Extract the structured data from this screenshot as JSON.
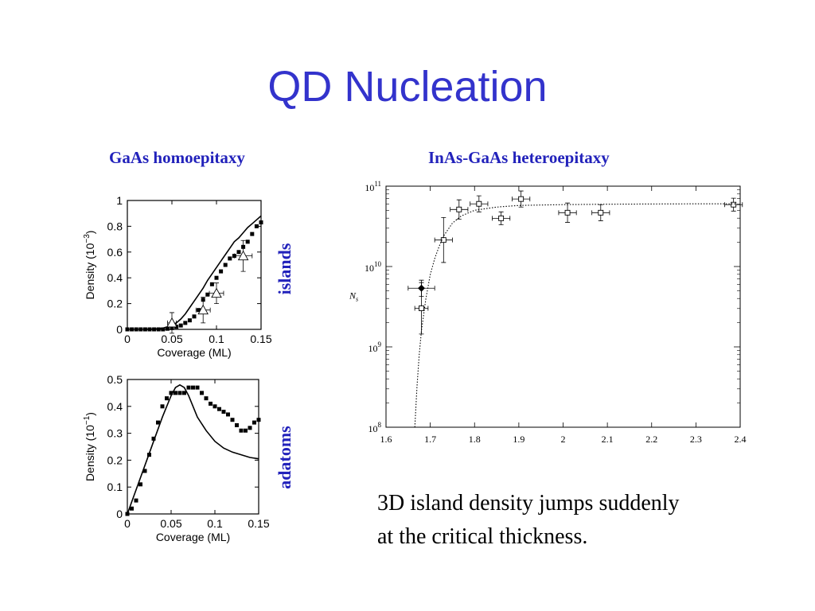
{
  "slide": {
    "title": "QD Nucleation",
    "left_heading": "GaAs homoepitaxy",
    "right_heading": "InAs-GaAs heteroepitaxy",
    "label_islands": "islands",
    "label_adatoms": "adatoms",
    "caption_line1": "3D island density jumps suddenly",
    "caption_line2": "at the critical thickness."
  },
  "colors": {
    "title": "#3333cc",
    "heading": "#2222bb",
    "ink": "#000000"
  },
  "chart_data": [
    {
      "type": "scatter",
      "panel": "islands",
      "xlabel": "Coverage (ML)",
      "ylabel": "Density (10",
      "ylabel_exp": "−3",
      "ylabel_close": ")",
      "xlim": [
        0,
        0.15
      ],
      "ylim": [
        0,
        1
      ],
      "xticks": [
        0,
        0.05,
        0.1,
        0.15
      ],
      "xtick_labels": [
        "0",
        "0.05",
        "0.1",
        "0.15"
      ],
      "yticks": [
        0,
        0.2,
        0.4,
        0.6,
        0.8,
        1
      ],
      "ytick_labels": [
        "0",
        "0.2",
        "0.4",
        "0.6",
        "0.8",
        "1"
      ],
      "series": [
        {
          "style": "squares",
          "x": [
            0.0,
            0.005,
            0.01,
            0.015,
            0.02,
            0.025,
            0.03,
            0.035,
            0.04,
            0.045,
            0.05,
            0.055,
            0.06,
            0.065,
            0.07,
            0.075,
            0.08,
            0.085,
            0.09,
            0.095,
            0.1,
            0.105,
            0.11,
            0.115,
            0.12,
            0.125,
            0.13,
            0.135,
            0.14,
            0.145,
            0.15
          ],
          "y": [
            0,
            0,
            0,
            0,
            0,
            0,
            0,
            0,
            0,
            0.005,
            0.01,
            0.02,
            0.03,
            0.05,
            0.07,
            0.1,
            0.15,
            0.23,
            0.27,
            0.35,
            0.4,
            0.45,
            0.5,
            0.55,
            0.57,
            0.6,
            0.64,
            0.68,
            0.74,
            0.8,
            0.83
          ]
        },
        {
          "style": "line",
          "x": [
            0.02,
            0.03,
            0.04,
            0.05,
            0.055,
            0.06,
            0.065,
            0.07,
            0.075,
            0.08,
            0.085,
            0.09,
            0.095,
            0.1,
            0.105,
            0.11,
            0.115,
            0.12,
            0.125,
            0.13,
            0.135,
            0.14,
            0.145,
            0.15
          ],
          "y": [
            0,
            0.002,
            0.01,
            0.03,
            0.05,
            0.08,
            0.12,
            0.17,
            0.22,
            0.27,
            0.32,
            0.38,
            0.43,
            0.48,
            0.53,
            0.58,
            0.63,
            0.68,
            0.71,
            0.75,
            0.79,
            0.82,
            0.85,
            0.88
          ]
        },
        {
          "style": "triangles",
          "x": [
            0.05,
            0.085,
            0.1,
            0.13
          ],
          "y": [
            0.05,
            0.15,
            0.28,
            0.57
          ],
          "xerr": [
            0.005,
            0.008,
            0.008,
            0.01
          ],
          "yerr": [
            0.08,
            0.1,
            0.08,
            0.12
          ]
        }
      ]
    },
    {
      "type": "scatter",
      "panel": "adatoms",
      "xlabel": "Coverage (ML)",
      "ylabel": "Density (10",
      "ylabel_exp": "−1",
      "ylabel_close": ")",
      "xlim": [
        0,
        0.15
      ],
      "ylim": [
        0,
        0.5
      ],
      "xticks": [
        0,
        0.05,
        0.1,
        0.15
      ],
      "xtick_labels": [
        "0",
        "0.05",
        "0.1",
        "0.15"
      ],
      "yticks": [
        0,
        0.1,
        0.2,
        0.3,
        0.4,
        0.5
      ],
      "ytick_labels": [
        "0",
        "0.1",
        "0.2",
        "0.3",
        "0.4",
        "0.5"
      ],
      "series": [
        {
          "style": "squares",
          "x": [
            0.0,
            0.005,
            0.01,
            0.015,
            0.02,
            0.025,
            0.03,
            0.035,
            0.04,
            0.045,
            0.05,
            0.055,
            0.06,
            0.065,
            0.07,
            0.075,
            0.08,
            0.085,
            0.09,
            0.095,
            0.1,
            0.105,
            0.11,
            0.115,
            0.12,
            0.125,
            0.13,
            0.135,
            0.14,
            0.145,
            0.15
          ],
          "y": [
            0,
            0.02,
            0.05,
            0.11,
            0.16,
            0.22,
            0.28,
            0.34,
            0.4,
            0.43,
            0.45,
            0.45,
            0.45,
            0.45,
            0.47,
            0.47,
            0.47,
            0.45,
            0.43,
            0.41,
            0.4,
            0.39,
            0.38,
            0.37,
            0.35,
            0.33,
            0.31,
            0.31,
            0.32,
            0.34,
            0.35
          ]
        },
        {
          "style": "line",
          "x": [
            0,
            0.01,
            0.02,
            0.03,
            0.04,
            0.05,
            0.055,
            0.06,
            0.065,
            0.07,
            0.075,
            0.08,
            0.09,
            0.1,
            0.11,
            0.12,
            0.13,
            0.14,
            0.15
          ],
          "y": [
            0,
            0.09,
            0.18,
            0.27,
            0.36,
            0.44,
            0.47,
            0.48,
            0.47,
            0.44,
            0.4,
            0.36,
            0.31,
            0.27,
            0.245,
            0.23,
            0.22,
            0.21,
            0.205
          ]
        }
      ]
    },
    {
      "type": "scatter",
      "panel": "heteroepitaxy",
      "xlabel": "",
      "ylabel": "N",
      "ylabel_sub": "s",
      "xlim": [
        1.6,
        2.4
      ],
      "ylim_log10": [
        8,
        11
      ],
      "yscale": "log",
      "xticks": [
        1.6,
        1.7,
        1.8,
        1.9,
        2.0,
        2.1,
        2.2,
        2.3,
        2.4
      ],
      "xtick_labels": [
        "1.6",
        "1.7",
        "1.8",
        "1.9",
        "2",
        "2.1",
        "2.2",
        "2.3",
        "2.4"
      ],
      "yticks_log10": [
        8,
        9,
        10,
        11
      ],
      "ytick_labels": [
        "10",
        "10",
        "10",
        "10"
      ],
      "ytick_exps": [
        "8",
        "9",
        "10",
        "11"
      ],
      "series": [
        {
          "style": "open-squares",
          "x": [
            1.68,
            1.73,
            1.765,
            1.81,
            1.86,
            1.905,
            2.01,
            2.085,
            2.385
          ],
          "y_log10": [
            9.48,
            10.33,
            10.71,
            10.78,
            10.6,
            10.84,
            10.67,
            10.67,
            10.77
          ],
          "xerr": [
            0.015,
            0.02,
            0.02,
            0.02,
            0.02,
            0.02,
            0.02,
            0.02,
            0.02
          ],
          "yerr_log10": [
            0.32,
            0.28,
            0.12,
            0.1,
            0.08,
            0.1,
            0.12,
            0.1,
            0.08
          ]
        },
        {
          "style": "filled-diamond",
          "x": [
            1.68
          ],
          "y_log10": [
            9.73
          ],
          "xerr": [
            0.03
          ],
          "yerr_log10": [
            0.1
          ]
        },
        {
          "style": "dotted-line",
          "x": [
            1.665,
            1.67,
            1.675,
            1.68,
            1.69,
            1.7,
            1.71,
            1.72,
            1.73,
            1.75,
            1.77,
            1.8,
            1.85,
            1.9,
            2.0,
            2.1,
            2.2,
            2.3,
            2.39
          ],
          "y_log10": [
            8.0,
            8.5,
            8.9,
            9.2,
            9.6,
            9.9,
            10.1,
            10.25,
            10.38,
            10.54,
            10.63,
            10.7,
            10.74,
            10.76,
            10.77,
            10.775,
            10.778,
            10.78,
            10.78
          ]
        }
      ]
    }
  ]
}
